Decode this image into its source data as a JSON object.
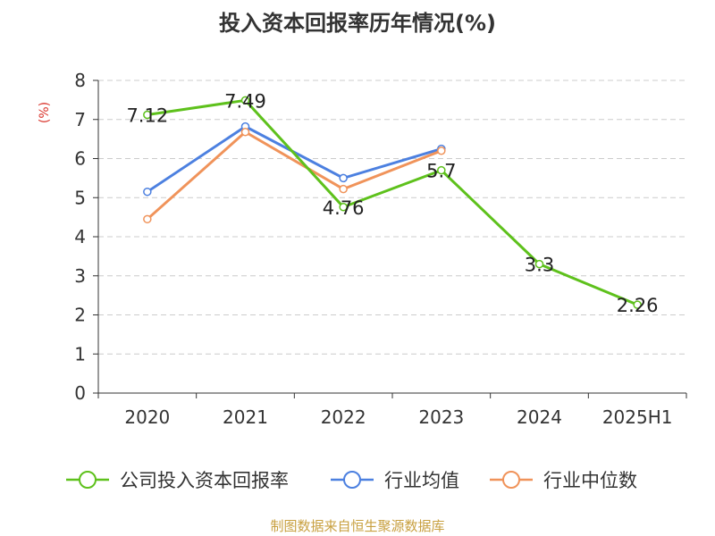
{
  "chart_data": {
    "type": "line",
    "title": "投入资本回报率历年情况(%)",
    "ylabel": "(%)",
    "xlabel": "",
    "categories": [
      "2020",
      "2021",
      "2022",
      "2023",
      "2024",
      "2025H1"
    ],
    "ylim": [
      0,
      8
    ],
    "yticks": [
      0,
      1,
      2,
      3,
      4,
      5,
      6,
      7,
      8
    ],
    "grid": true,
    "legend_position": "bottom",
    "series": [
      {
        "name": "公司投入资本回报率",
        "color": "#5ec11c",
        "values": [
          7.12,
          7.49,
          4.76,
          5.7,
          3.3,
          2.26
        ],
        "labels": [
          "7.12",
          "7.49",
          "4.76",
          "5.7",
          "3.3",
          "2.26"
        ]
      },
      {
        "name": "行业均值",
        "color": "#4c80e0",
        "values": [
          5.15,
          6.82,
          5.5,
          6.25,
          null,
          null
        ]
      },
      {
        "name": "行业中位数",
        "color": "#f0935a",
        "values": [
          4.45,
          6.68,
          5.22,
          6.2,
          null,
          null
        ]
      }
    ],
    "source": "制图数据来自恒生聚源数据库"
  }
}
